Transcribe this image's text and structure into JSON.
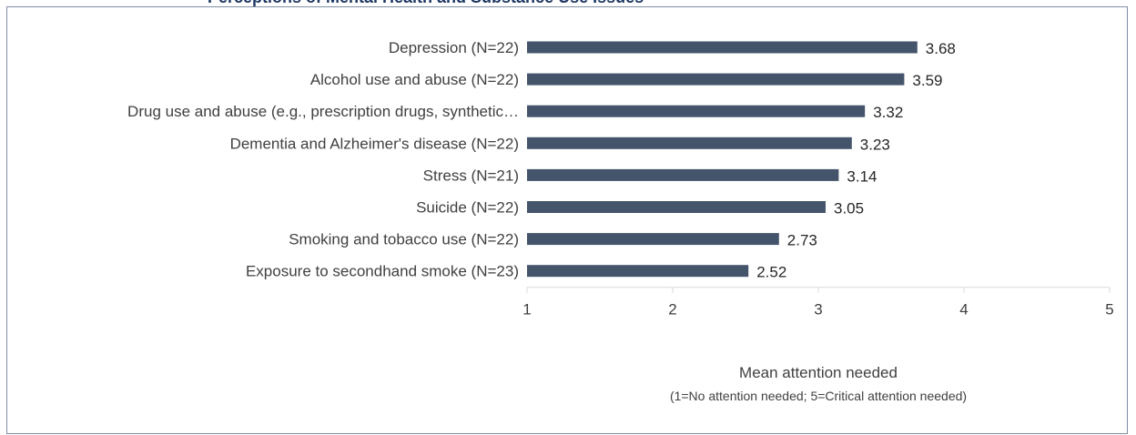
{
  "header": {
    "title_fragment": "Perceptions of Mental Health and Substance Use Issues"
  },
  "chart_data": {
    "type": "bar",
    "orientation": "horizontal",
    "categories": [
      "Depression (N=22)",
      "Alcohol use and abuse (N=22)",
      "Drug use and abuse (e.g., prescription drugs, synthetic…",
      "Dementia and Alzheimer's disease (N=22)",
      "Stress (N=21)",
      "Suicide (N=22)",
      "Smoking and tobacco use (N=22)",
      "Exposure to secondhand smoke (N=23)"
    ],
    "values": [
      3.68,
      3.59,
      3.32,
      3.23,
      3.14,
      3.05,
      2.73,
      2.52
    ],
    "value_labels": [
      "3.68",
      "3.59",
      "3.32",
      "3.23",
      "3.14",
      "3.05",
      "2.73",
      "2.52"
    ],
    "xlim": [
      1,
      5
    ],
    "xticks": [
      "1",
      "2",
      "3",
      "4",
      "5"
    ],
    "xlabel": "Mean attention needed",
    "xlabel_sub": "(1=No attention needed; 5=Critical attention needed)",
    "grid": false,
    "bar_color": "#44546a",
    "axis_color": "#d9d9d9"
  }
}
